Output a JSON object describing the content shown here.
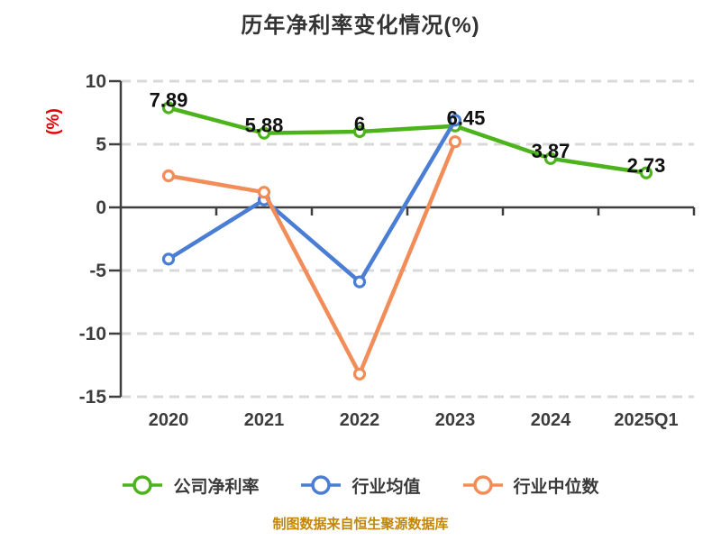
{
  "title": "历年净利率变化情况(%)",
  "y_axis_label": "(%)",
  "footer": "制图数据来自恒生聚源数据库",
  "colors": {
    "company": "#4db31d",
    "industry_average": "#4a7dd4",
    "industry_median": "#f28d5a",
    "axis": "#3f3f3f",
    "grid": "#d9d9d9",
    "title_text": "#333333",
    "y_axis_label_text": "#e60000",
    "tick_text": "#3d3d3d",
    "data_label_text": "#111111",
    "footer_text": "#c3860a"
  },
  "chart_data": {
    "type": "line",
    "title": "历年净利率变化情况(%)",
    "xlabel": "",
    "ylabel": "(%)",
    "categories": [
      "2020",
      "2021",
      "2022",
      "2023",
      "2024",
      "2025Q1"
    ],
    "series": [
      {
        "key": "company",
        "name": "公司净利率",
        "color": "#4db31d",
        "values": [
          7.89,
          5.88,
          6,
          6.45,
          3.87,
          2.73
        ],
        "labels": [
          "7.89",
          "5.88",
          "6",
          "6.45",
          "3.87",
          "2.73"
        ]
      },
      {
        "key": "industry-average",
        "name": "行业均值",
        "color": "#4a7dd4",
        "values": [
          -4.1,
          0.6,
          -5.9,
          6.9,
          null,
          null
        ]
      },
      {
        "key": "industry-median",
        "name": "行业中位数",
        "color": "#f28d5a",
        "values": [
          2.5,
          1.2,
          -13.2,
          5.2,
          null,
          null
        ]
      }
    ],
    "ylim": [
      -15,
      10
    ],
    "yticks": [
      10,
      5,
      0,
      -5,
      -10,
      -15
    ],
    "grid": "horizontal dashed, zero line solid",
    "legend_position": "bottom",
    "marker": "circle, white fill, colored ring"
  }
}
